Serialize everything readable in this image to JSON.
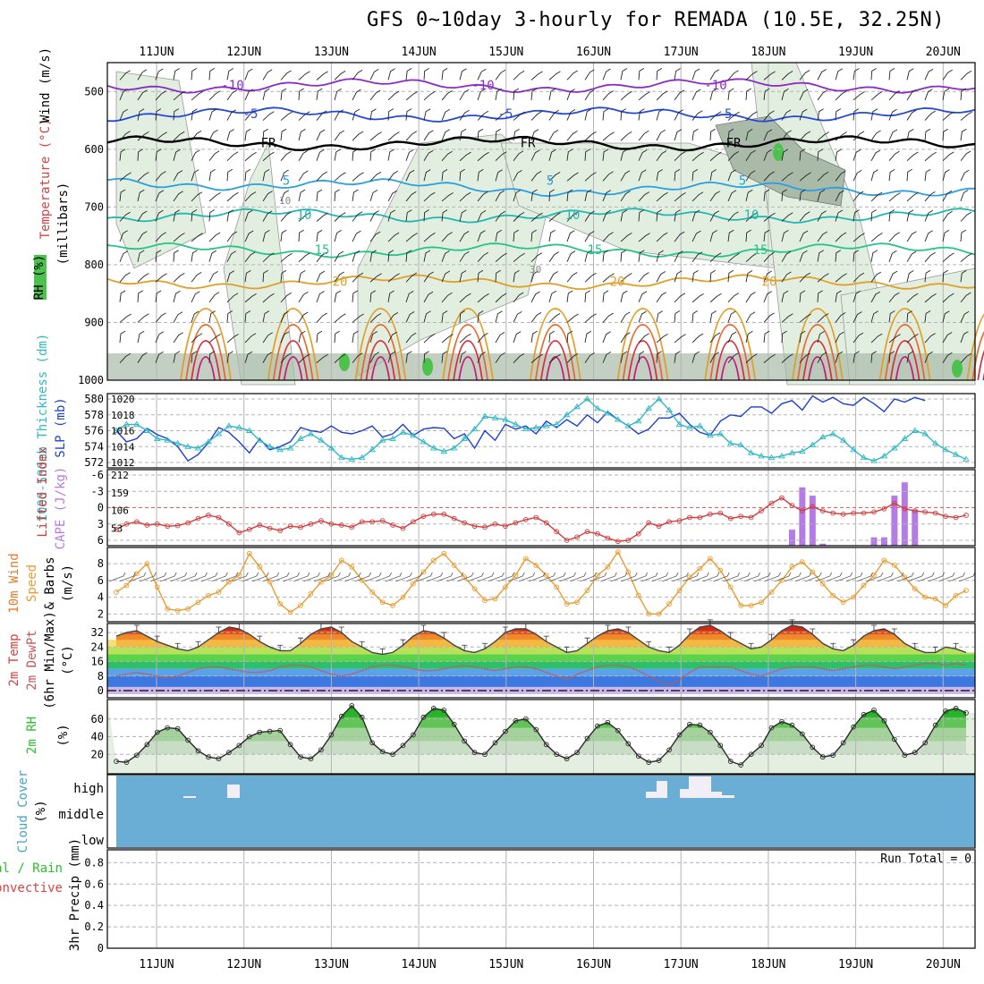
{
  "title": "GFS 0~10day 3-hourly for REMADA (10.5E, 32.25N)",
  "colors": {
    "frame": "#000000",
    "grid": "#b4b4b4",
    "rh_fill_light": "#e2efe0",
    "rh_fill_mid": "#a9baa9",
    "rh_fill_dark": "#4cc24c",
    "slp": "#1d3fcf",
    "thickness": "#2fb8c3",
    "lifted_index": "#d23c3c",
    "cape": "#b47ae6",
    "wind_speed": "#e89b2e",
    "dewpoint": "#c25a5a",
    "rh2m": "#2fbf2f",
    "cloud_bg": "#6aaed6",
    "cloud_fill": "#f2eef6"
  },
  "chart_data": [
    {
      "type": "contour-timeheight",
      "name": "upper-air",
      "x_labels": [
        "11JUN",
        "12JUN",
        "13JUN",
        "14JUN",
        "15JUN",
        "16JUN",
        "17JUN",
        "18JUN",
        "19JUN",
        "20JUN"
      ],
      "ylabel_parts": {
        "rh": "RH (%)",
        "temperature": "Temperature (°C)",
        "wind": "Wind (m/s)",
        "unit": "(millibars)"
      },
      "yticks": [
        500,
        600,
        700,
        800,
        900,
        1000
      ],
      "ylim": [
        450,
        1000
      ],
      "isotherms": [
        {
          "value": -10,
          "label": "-10",
          "level": 490,
          "color": "#8a2bc8"
        },
        {
          "value": -5,
          "label": "-5",
          "level": 540,
          "color": "#2448d8"
        },
        {
          "value": 0,
          "label": "FR",
          "level": 590,
          "color": "#000000"
        },
        {
          "value": 5,
          "label": "5",
          "level": 655,
          "color": "#2aa0e0"
        },
        {
          "value": 10,
          "label": "10",
          "level": 715,
          "color": "#22b7b0"
        },
        {
          "value": 15,
          "label": "15",
          "level": 775,
          "color": "#26c488"
        },
        {
          "value": 20,
          "label": "20",
          "level": 830,
          "color": "#e0a028"
        }
      ],
      "rh_labels": [
        "10",
        "30"
      ]
    },
    {
      "type": "line",
      "name": "slp-thickness",
      "ylabel_left": "1000-500mb Thickness (dm)",
      "ylabel_right": "SLP (mb)",
      "yticks_left": [
        572,
        574,
        576,
        578,
        580
      ],
      "yticks_right": [
        1012,
        1014,
        1016,
        1018,
        1020
      ],
      "series": [
        {
          "name": "SLP (mb)",
          "values": [
            1016,
            1014.6,
            1015,
            1016.3,
            1015.5,
            1015,
            1014,
            1012.2,
            1013,
            1014.5,
            1016.4,
            1015.8,
            1014.6,
            1013.2,
            1015,
            1013.6,
            1014,
            1014.6,
            1016.4,
            1016,
            1015.8,
            1016.6,
            1015.8,
            1015.6,
            1016,
            1016.6,
            1015.2,
            1015.6,
            1016.8,
            1015.4,
            1016.2,
            1016.4,
            1016.3,
            1015,
            1015.6,
            1013.8,
            1016,
            1014.8,
            1016.8,
            1016.2,
            1016.6,
            1015.6,
            1017.2,
            1016.4,
            1017.4,
            1016.6,
            1018,
            1017,
            1018.4,
            1017.4,
            1016.6,
            1015.6,
            1016.2,
            1017.6,
            1017.6,
            1018.2,
            1016.8,
            1015.8,
            1015.4,
            1017.2,
            1018,
            1017.8,
            1019,
            1019,
            1018.2,
            1019.4,
            1019.8,
            1018.6,
            1020.4,
            1019.6,
            1020.2,
            1019.4,
            1019.2,
            1020.2,
            1019.4,
            1018.4,
            1020,
            1019.6,
            1020.2,
            1019.8
          ]
        },
        {
          "name": "1000-500mb Thickness (dm)",
          "values": [
            576,
            576.8,
            576.8,
            576,
            575,
            574.8,
            574.4,
            574,
            573.8,
            574.6,
            575.6,
            576.6,
            576.4,
            576,
            574.8,
            574,
            573.6,
            573.8,
            575,
            575.6,
            574.8,
            573.8,
            572.6,
            572.4,
            572.6,
            573.6,
            574.8,
            575,
            575.8,
            575.4,
            574.6,
            573.8,
            573.4,
            573.8,
            575,
            576.2,
            577.8,
            577.6,
            577.4,
            576.8,
            576.2,
            576.4,
            576.6,
            576.8,
            578,
            579,
            580,
            578.8,
            578.2,
            577.4,
            576.6,
            577.2,
            578.8,
            580,
            578.6,
            576.8,
            576.4,
            576.6,
            575.4,
            575.6,
            574.4,
            574.2,
            573.2,
            572.8,
            572.6,
            572.8,
            573.2,
            573.4,
            574.2,
            575.2,
            575.6,
            574.8,
            573.6,
            572.6,
            572.2,
            572.8,
            573.8,
            575,
            576,
            575.6,
            574.4,
            573.6,
            573,
            572.4
          ]
        }
      ]
    },
    {
      "type": "bar-line",
      "name": "lifted-cape",
      "ylabel_left": "Lifted Index",
      "ylabel_right": "CAPE (J/kg)",
      "yticks_left": [
        -6,
        -3,
        0,
        3,
        6
      ],
      "yticks_left_labels": [
        "-6",
        "-3",
        "0",
        "3",
        "6"
      ],
      "yticks_right": [
        53,
        106,
        159,
        212
      ],
      "series": [
        {
          "name": "Lifted Index",
          "values": [
            4,
            3,
            2.6,
            3.2,
            3,
            3.4,
            3.3,
            2.8,
            2,
            1.4,
            1.8,
            3,
            4.6,
            4,
            3.2,
            3.8,
            4.2,
            3.4,
            3.6,
            3,
            2.4,
            3,
            3.2,
            3.6,
            2.6,
            2.6,
            2.4,
            3.2,
            3.8,
            2.6,
            1.6,
            1.2,
            1.2,
            2,
            2.8,
            3.4,
            3.6,
            3,
            3.4,
            2.8,
            2.2,
            1.8,
            2.8,
            4.4,
            6,
            5.4,
            4.4,
            4.8,
            5.6,
            6.2,
            6,
            4.8,
            2.8,
            3.4,
            2.6,
            2.4,
            1.8,
            1.8,
            1.2,
            1,
            2,
            1.6,
            1.8,
            0.6,
            -0.8,
            -1.8,
            -0.4,
            0.6,
            -0.2,
            0.6,
            1,
            1.2,
            1,
            1,
            0.8,
            0.2,
            -0.8,
            0.2,
            0.6,
            0.8,
            1,
            1.6,
            1.8,
            1.4
          ]
        },
        {
          "name": "CAPE (J/kg)",
          "values": [
            0,
            0,
            0,
            0,
            0,
            0,
            0,
            0,
            0,
            0,
            0,
            0,
            0,
            0,
            0,
            0,
            0,
            0,
            0,
            0,
            0,
            0,
            0,
            0,
            0,
            0,
            0,
            0,
            0,
            0,
            0,
            0,
            0,
            0,
            0,
            0,
            0,
            0,
            0,
            0,
            0,
            0,
            0,
            0,
            0,
            0,
            0,
            0,
            0,
            0,
            0,
            0,
            0,
            0,
            0,
            0,
            0,
            0,
            0,
            0,
            0,
            0,
            0,
            0,
            0,
            0,
            48,
            175,
            150,
            6,
            0,
            0,
            0,
            0,
            25,
            25,
            150,
            190,
            108,
            0,
            0,
            0,
            0,
            0
          ]
        }
      ]
    },
    {
      "type": "line",
      "name": "wind10m",
      "ylabel": "10m Wind Speed & Barbs (m/s)",
      "yticks": [
        2,
        4,
        6,
        8
      ],
      "series": [
        {
          "name": "10m Wind Speed",
          "values": [
            4.6,
            5.4,
            6.8,
            8,
            5.2,
            2.6,
            2.4,
            2.6,
            3.4,
            4.2,
            4.6,
            5.8,
            6.6,
            9.2,
            7.6,
            5.8,
            3.2,
            2.2,
            3,
            4.4,
            5.8,
            6.6,
            8.4,
            7.6,
            6,
            4.6,
            3.4,
            3,
            4,
            5.6,
            7,
            8.4,
            9.2,
            7.8,
            6.4,
            5,
            3.6,
            3.8,
            5.2,
            6.6,
            8.6,
            7.8,
            6.6,
            5.2,
            3.2,
            3.4,
            4.8,
            6.6,
            7.6,
            9.4,
            7,
            4.2,
            2,
            2,
            3.2,
            4.8,
            6.4,
            7.4,
            8.6,
            7.2,
            5.2,
            3,
            3,
            3.4,
            4.6,
            6,
            7.6,
            8.2,
            7,
            5.6,
            4.2,
            3.4,
            4,
            5.4,
            6.6,
            8.4,
            7.8,
            6.4,
            5,
            4,
            3.8,
            3,
            4.2,
            4.8
          ]
        }
      ]
    },
    {
      "type": "area-line",
      "name": "temp2m",
      "ylabel": "2m Temp 2m DewPt (6hr Min/Max) (°C)",
      "yticks": [
        0,
        8,
        16,
        24,
        32
      ],
      "series": [
        {
          "name": "2m Temp",
          "values": [
            30,
            32,
            33,
            30,
            27,
            25,
            23,
            22,
            24,
            28,
            32,
            35,
            34,
            31,
            27,
            24,
            22,
            22,
            26,
            31,
            34,
            35,
            32,
            27,
            24,
            21,
            20,
            21,
            25,
            30,
            33,
            32,
            29,
            25,
            22,
            21,
            23,
            27,
            32,
            34,
            34,
            31,
            27,
            24,
            21,
            22,
            26,
            30,
            33,
            34,
            32,
            28,
            24,
            22,
            21,
            25,
            31,
            35,
            36,
            33,
            29,
            26,
            23,
            24,
            28,
            33,
            36,
            35,
            31,
            26,
            23,
            22,
            25,
            30,
            33,
            34,
            31,
            26,
            23,
            21,
            21,
            24,
            23,
            21
          ]
        },
        {
          "name": "2m DewPt",
          "values": [
            8,
            9,
            10,
            9,
            8,
            7,
            8,
            10,
            12,
            13,
            13,
            12,
            11,
            10,
            10,
            11,
            13,
            14,
            14,
            13,
            11,
            9,
            8,
            9,
            11,
            13,
            14,
            14,
            13,
            12,
            11,
            11,
            12,
            13,
            14,
            13,
            12,
            11,
            12,
            13,
            13,
            12,
            10,
            8,
            6,
            9,
            11,
            13,
            14,
            14,
            13,
            11,
            8,
            5,
            3,
            6,
            10,
            13,
            13,
            13,
            13,
            11,
            9,
            8,
            10,
            12,
            13,
            13,
            13,
            12,
            11,
            12,
            13,
            14,
            14,
            13,
            12,
            13,
            14,
            15,
            15,
            14,
            15,
            14
          ]
        }
      ]
    },
    {
      "type": "area",
      "name": "rh2m",
      "ylabel": "2m RH (%)",
      "yticks": [
        20,
        40,
        60
      ],
      "series": [
        {
          "name": "2m RH",
          "values": [
            12,
            11,
            19,
            31,
            45,
            50,
            49,
            36,
            24,
            17,
            15,
            22,
            30,
            40,
            45,
            46,
            47,
            31,
            17,
            15,
            25,
            42,
            63,
            75,
            62,
            33,
            23,
            20,
            30,
            42,
            62,
            72,
            70,
            54,
            35,
            22,
            20,
            33,
            46,
            58,
            60,
            48,
            31,
            20,
            15,
            22,
            38,
            52,
            56,
            47,
            32,
            18,
            11,
            13,
            25,
            42,
            54,
            53,
            45,
            30,
            12,
            8,
            20,
            30,
            50,
            57,
            53,
            43,
            28,
            17,
            19,
            33,
            51,
            65,
            70,
            58,
            37,
            19,
            22,
            33,
            53,
            69,
            72,
            67
          ]
        }
      ]
    },
    {
      "type": "bar",
      "name": "cloud-cover",
      "ylabel": "Cloud Cover (%)",
      "yticks_labels": [
        "high",
        "middle",
        "low"
      ]
    },
    {
      "type": "bar",
      "name": "precip",
      "ylabel_parts": [
        "Total / Rain",
        "Convective",
        "3hr Precip (mm)"
      ],
      "yticks": [
        0,
        0.2,
        0.4,
        0.6,
        0.8
      ],
      "yticks_labels": [
        "0",
        "0.2",
        "0.4",
        "0.6",
        "0.8"
      ],
      "run_total": "Run Total = 0"
    }
  ]
}
